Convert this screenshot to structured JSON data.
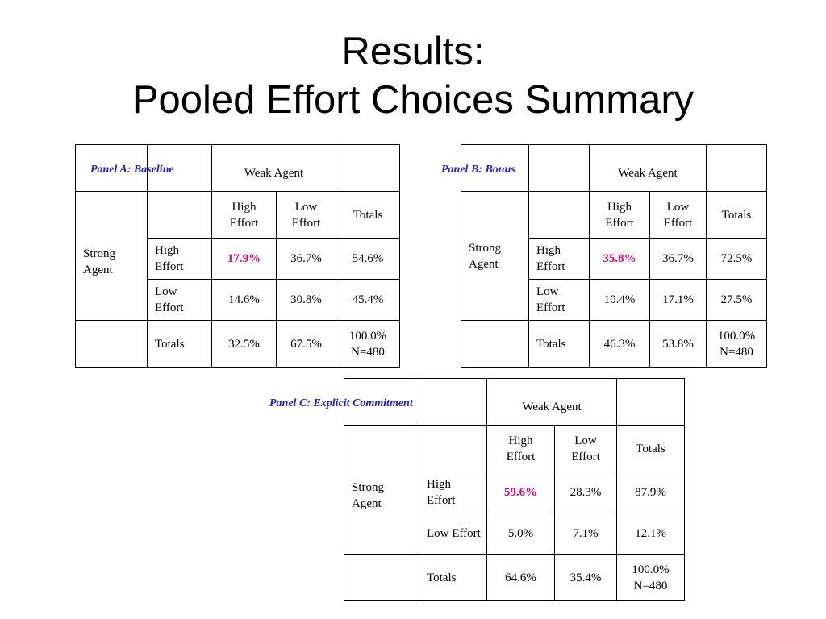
{
  "title": {
    "line1": "Results:",
    "line2": "Pooled Effort Choices Summary"
  },
  "colors": {
    "highlight": "#e6007e",
    "panel_label": "#1f1fbf"
  },
  "panels": [
    {
      "label": "Panel A: Baseline",
      "column_group": "Weak Agent",
      "row_group": "Strong Agent",
      "col_headers": [
        "High Effort",
        "Low Effort",
        "Totals"
      ],
      "rows": [
        {
          "label": "High Effort",
          "values": [
            "17.9%",
            "36.7%",
            "54.6%"
          ]
        },
        {
          "label": "Low Effort",
          "values": [
            "14.6%",
            "30.8%",
            "45.4%"
          ]
        }
      ],
      "totals": {
        "label": "Totals",
        "values": [
          "32.5%",
          "67.5%"
        ],
        "grand_total": "100.0%",
        "n": "N=480"
      }
    },
    {
      "label": "Panel B: Bonus",
      "column_group": "Weak Agent",
      "row_group": "Strong Agent",
      "col_headers": [
        "High Effort",
        "Low Effort",
        "Totals"
      ],
      "rows": [
        {
          "label": "High Effort",
          "values": [
            "35.8%",
            "36.7%",
            "72.5%"
          ]
        },
        {
          "label": "Low Effort",
          "values": [
            "10.4%",
            "17.1%",
            "27.5%"
          ]
        }
      ],
      "totals": {
        "label": "Totals",
        "values": [
          "46.3%",
          "53.8%"
        ],
        "grand_total": "100.0%",
        "n": "N=480"
      }
    },
    {
      "label": "Panel C:  Explicit Commitment",
      "column_group": "Weak Agent",
      "row_group": "Strong Agent",
      "col_headers": [
        "High Effort",
        "Low Effort",
        "Totals"
      ],
      "rows": [
        {
          "label": "High Effort",
          "values": [
            "59.6%",
            "28.3%",
            "87.9%"
          ]
        },
        {
          "label": "Low Effort",
          "values": [
            "5.0%",
            "7.1%",
            "12.1%"
          ]
        }
      ],
      "totals": {
        "label": "Totals",
        "values": [
          "64.6%",
          "35.4%"
        ],
        "grand_total": "100.0%",
        "n": "N=480"
      }
    }
  ]
}
